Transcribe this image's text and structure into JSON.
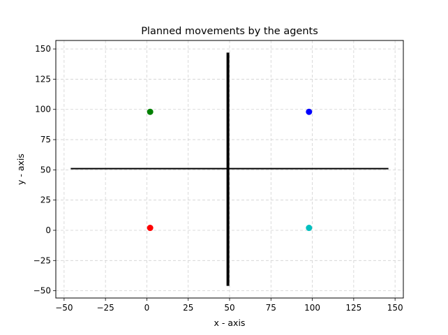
{
  "chart_data": {
    "type": "scatter",
    "title": "Planned movements by the agents",
    "xlabel": "x - axis",
    "ylabel": "y - axis",
    "xlim": [
      -55,
      155
    ],
    "ylim": [
      -56,
      157
    ],
    "xticks": [
      -50,
      -25,
      0,
      25,
      50,
      75,
      100,
      125,
      150
    ],
    "yticks": [
      -50,
      -25,
      0,
      25,
      50,
      75,
      100,
      125,
      150
    ],
    "grid": true,
    "points": [
      {
        "x": 2,
        "y": 98,
        "color": "#008000"
      },
      {
        "x": 98,
        "y": 98,
        "color": "#0000ff"
      },
      {
        "x": 2,
        "y": 2,
        "color": "#ff0000"
      },
      {
        "x": 98,
        "y": 2,
        "color": "#00bfbf"
      }
    ],
    "lines": [
      {
        "x": [
          -46,
          146
        ],
        "y": [
          51,
          51
        ],
        "color": "#000000",
        "width": "thin"
      },
      {
        "x": [
          49,
          49
        ],
        "y": [
          -46,
          147
        ],
        "color": "#000000",
        "width": "thick"
      }
    ]
  }
}
